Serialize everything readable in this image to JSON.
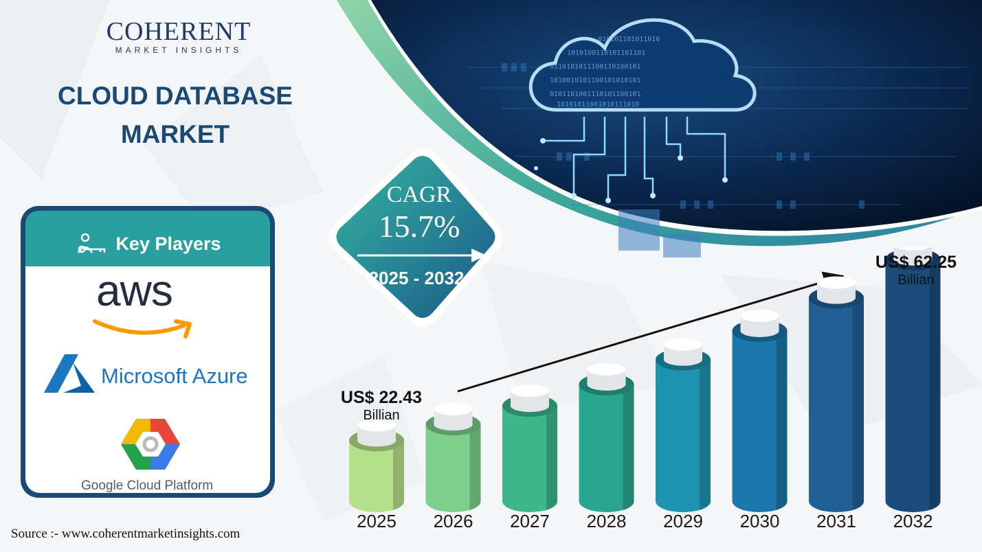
{
  "brand": {
    "name": "COHERENT",
    "tagline": "MARKET INSIGHTS"
  },
  "title": {
    "line1": "CLOUD DATABASE",
    "line2": "MARKET"
  },
  "key_players": {
    "heading": "Key Players",
    "players": [
      "aws",
      "Microsoft Azure",
      "Google Cloud Platform"
    ]
  },
  "cagr": {
    "label": "CAGR",
    "value": "15.7%",
    "period": "2025 - 2032"
  },
  "start_value": {
    "amount": "US$ 22.43",
    "unit": "Billian"
  },
  "end_value": {
    "amount": "US$ 62.25",
    "unit": "Billian"
  },
  "source": "Source :- www.coherentmarketinsights.com",
  "colors": {
    "navy": "#1a4a73",
    "teal": "#2a9fa0",
    "dark_bg": "#061a33",
    "bars": [
      "#b5e08a",
      "#7ccf8c",
      "#3cb88c",
      "#2aa58f",
      "#1e93b0",
      "#1c77aa",
      "#225f95",
      "#1a4b79"
    ]
  },
  "chart_data": {
    "type": "bar",
    "categories": [
      "2025",
      "2026",
      "2027",
      "2028",
      "2029",
      "2030",
      "2031",
      "2032"
    ],
    "values": [
      22.43,
      25.95,
      30.03,
      34.74,
      40.2,
      46.51,
      53.81,
      62.25
    ],
    "title": "",
    "xlabel": "",
    "ylabel": "",
    "ylim": [
      0,
      66
    ],
    "grid": false,
    "legend": "none"
  }
}
